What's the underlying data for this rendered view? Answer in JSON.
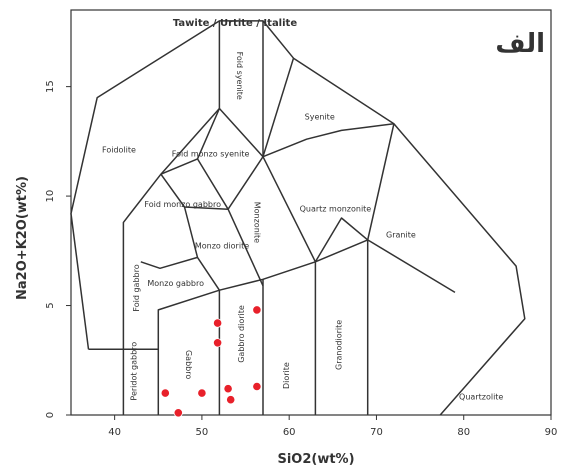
{
  "chart_data": {
    "type": "scatter",
    "title": "Tawite / Urtite / Italite",
    "badge": "الف",
    "xlabel": "SiO2(wt%)",
    "ylabel": "Na2O+K2O(wt%)",
    "xlim": [
      35,
      90
    ],
    "ylim": [
      0,
      18.5
    ],
    "x_ticks": [
      "40",
      "50",
      "60",
      "70",
      "80",
      "90"
    ],
    "y_ticks": [
      "0",
      "5",
      "10",
      "15"
    ],
    "fields": [
      {
        "name": "Foidolite"
      },
      {
        "name": "Foid syenite"
      },
      {
        "name": "Foid monzo syenite"
      },
      {
        "name": "Foid monzo gabbro"
      },
      {
        "name": "Foid gabbro"
      },
      {
        "name": "Syenite"
      },
      {
        "name": "Monzonite"
      },
      {
        "name": "Monzo diorite"
      },
      {
        "name": "Monzo gabbro"
      },
      {
        "name": "Quartz monzonite"
      },
      {
        "name": "Granite"
      },
      {
        "name": "Peridot gabbro"
      },
      {
        "name": "Gabbro"
      },
      {
        "name": "Gabbro diorite"
      },
      {
        "name": "Diorite"
      },
      {
        "name": "Granodiorite"
      },
      {
        "name": "Quartzolite"
      }
    ],
    "points": [
      {
        "x": 45.8,
        "y": 1.0
      },
      {
        "x": 47.3,
        "y": 0.1
      },
      {
        "x": 50.0,
        "y": 1.0
      },
      {
        "x": 51.8,
        "y": 4.2
      },
      {
        "x": 51.8,
        "y": 3.3
      },
      {
        "x": 53.0,
        "y": 1.2
      },
      {
        "x": 53.3,
        "y": 0.7
      },
      {
        "x": 56.3,
        "y": 4.8
      },
      {
        "x": 56.3,
        "y": 1.3
      }
    ],
    "marker_color": "#e8202a",
    "line_color": "#333333",
    "grid": false
  }
}
